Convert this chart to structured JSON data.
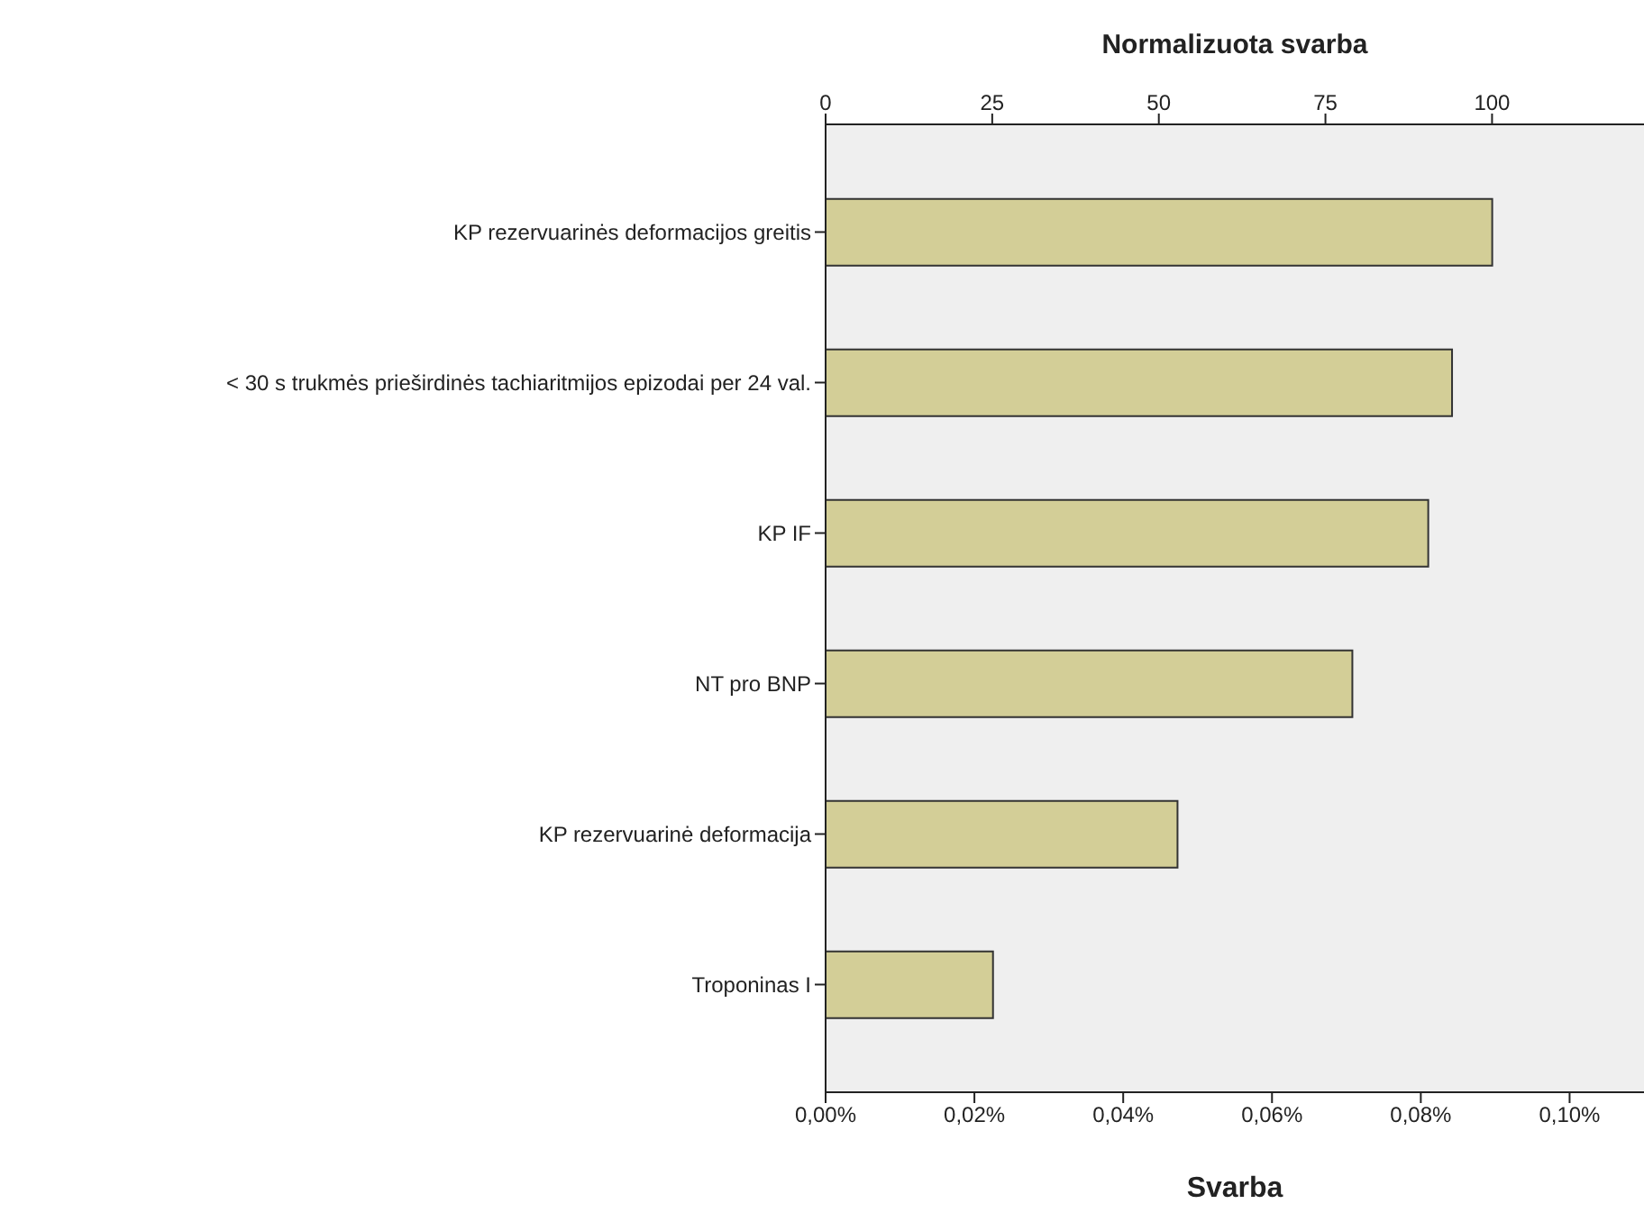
{
  "chart_data": {
    "type": "bar",
    "orientation": "horizontal",
    "xlabel": "Svarba",
    "x2label": "Normalizuota svarba",
    "categories": [
      "KP rezervuarinės deformacijos greitis",
      "< 30 s trukmės prieširdinės tachiaritmijos epizodai per 24 val.",
      "KP IF",
      "NT pro BNP",
      "KP rezervuarinė deformacija",
      "Troponinas I"
    ],
    "values": [
      0.0896,
      0.0842,
      0.081,
      0.0708,
      0.0473,
      0.0225
    ],
    "color": "#d3ce97",
    "xlim": [
      0,
      0.11
    ],
    "xticks": [
      {
        "value": 0,
        "label": "0,00%"
      },
      {
        "value": 0.02,
        "label": "0,02%"
      },
      {
        "value": 0.04,
        "label": "0,04%"
      },
      {
        "value": 0.06,
        "label": "0,06%"
      },
      {
        "value": 0.08,
        "label": "0,08%"
      },
      {
        "value": 0.1,
        "label": "0,10%"
      }
    ],
    "x2lim": [
      0,
      122.8
    ],
    "x2ticks": [
      0,
      25,
      50,
      75,
      100
    ]
  }
}
